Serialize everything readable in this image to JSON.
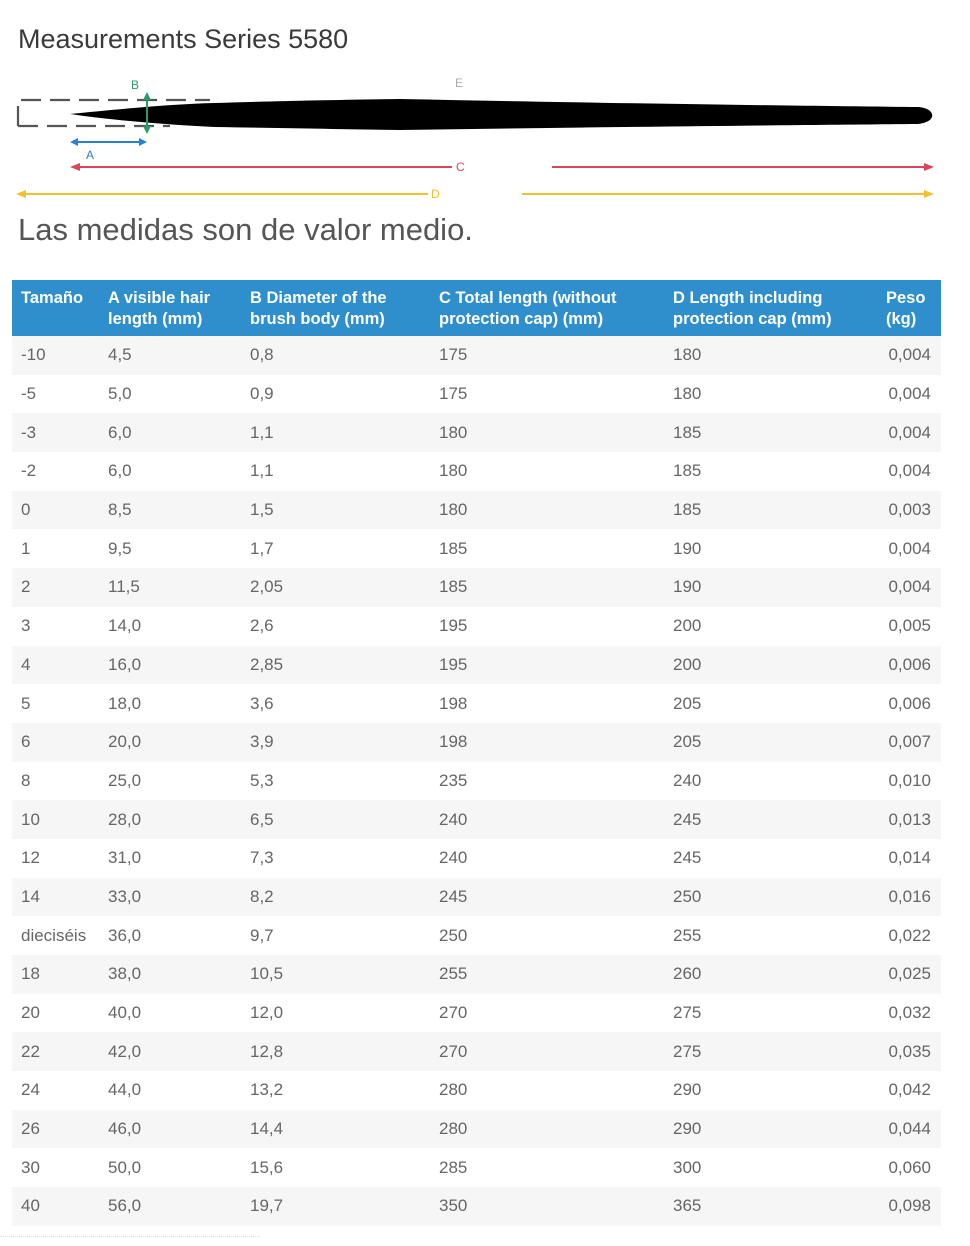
{
  "page": {
    "title": "Measurements Series 5580",
    "note": "Las medidas son de valor medio."
  },
  "diagram": {
    "label_a": "A",
    "label_b": "B",
    "label_c": "C",
    "label_d": "D",
    "label_e": "E",
    "colors": {
      "a": "#2b7fd6",
      "b": "#2a9a6a",
      "c": "#d9465c",
      "d": "#f2c12e",
      "brush": "#000000",
      "cap": "#555555"
    }
  },
  "table": {
    "header_color": "#2e8fcc",
    "headers": [
      "Tamaño",
      "A visible hair length (mm)",
      "B Diameter of the brush body (mm)",
      "C Total length (without protection cap) (mm)",
      "D Length including protection cap (mm)",
      "Peso (kg)"
    ],
    "rows": [
      [
        "-10",
        "4,5",
        "0,8",
        "175",
        "180",
        "0,004"
      ],
      [
        "-5",
        "5,0",
        "0,9",
        "175",
        "180",
        "0,004"
      ],
      [
        "-3",
        "6,0",
        "1,1",
        "180",
        "185",
        "0,004"
      ],
      [
        "-2",
        "6,0",
        "1,1",
        "180",
        "185",
        "0,004"
      ],
      [
        "0",
        "8,5",
        "1,5",
        "180",
        "185",
        "0,003"
      ],
      [
        "1",
        "9,5",
        "1,7",
        "185",
        "190",
        "0,004"
      ],
      [
        "2",
        "11,5",
        "2,05",
        "185",
        "190",
        "0,004"
      ],
      [
        "3",
        "14,0",
        "2,6",
        "195",
        "200",
        "0,005"
      ],
      [
        "4",
        "16,0",
        "2,85",
        "195",
        "200",
        "0,006"
      ],
      [
        "5",
        "18,0",
        "3,6",
        "198",
        "205",
        "0,006"
      ],
      [
        "6",
        "20,0",
        "3,9",
        "198",
        "205",
        "0,007"
      ],
      [
        "8",
        "25,0",
        "5,3",
        "235",
        "240",
        "0,010"
      ],
      [
        "10",
        "28,0",
        "6,5",
        "240",
        "245",
        "0,013"
      ],
      [
        "12",
        "31,0",
        "7,3",
        "240",
        "245",
        "0,014"
      ],
      [
        "14",
        "33,0",
        "8,2",
        "245",
        "250",
        "0,016"
      ],
      [
        "dieciséis",
        "36,0",
        "9,7",
        "250",
        "255",
        "0,022"
      ],
      [
        "18",
        "38,0",
        "10,5",
        "255",
        "260",
        "0,025"
      ],
      [
        "20",
        "40,0",
        "12,0",
        "270",
        "275",
        "0,032"
      ],
      [
        "22",
        "42,0",
        "12,8",
        "270",
        "275",
        "0,035"
      ],
      [
        "24",
        "44,0",
        "13,2",
        "280",
        "290",
        "0,042"
      ],
      [
        "26",
        "46,0",
        "14,4",
        "280",
        "290",
        "0,044"
      ],
      [
        "30",
        "50,0",
        "15,6",
        "285",
        "300",
        "0,060"
      ],
      [
        "40",
        "56,0",
        "19,7",
        "350",
        "365",
        "0,098"
      ]
    ]
  }
}
